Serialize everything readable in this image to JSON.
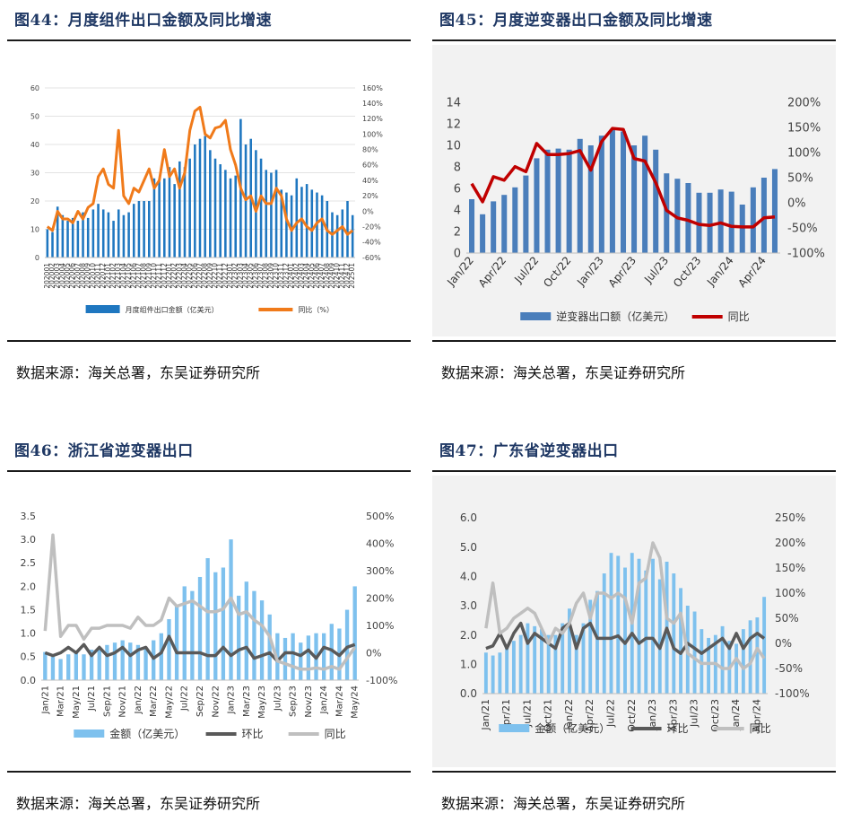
{
  "panels": [
    {
      "title": "图44：月度组件出口金额及同比增速",
      "source": "数据来源：海关总署，东吴证券研究所",
      "chart_data": {
        "type": "bar",
        "categories": [
          "202001",
          "202002",
          "202003",
          "202004",
          "202005",
          "202006",
          "202007",
          "202008",
          "202009",
          "202010",
          "202011",
          "202012",
          "202101",
          "202102",
          "202103",
          "202104",
          "202105",
          "202106",
          "202107",
          "202108",
          "202109",
          "202110",
          "202111",
          "202112",
          "202201",
          "202202",
          "202203",
          "202204",
          "202205",
          "202206",
          "202207",
          "202208",
          "202209",
          "202210",
          "202211",
          "202212",
          "202301",
          "202302",
          "202303",
          "202304",
          "202305",
          "202306",
          "202307",
          "202308",
          "202309",
          "202310",
          "202311",
          "202312",
          "202401",
          "202402",
          "202403",
          "202404",
          "202405",
          "202406",
          "202407",
          "202408",
          "202409",
          "202410",
          "202411",
          "202412",
          "202501"
        ],
        "series": [
          {
            "name": "月度组件出口金额（亿美元）",
            "axis": "left",
            "kind": "bar",
            "values": [
              10,
              9,
              18,
              15,
              13,
              14,
              13,
              16,
              14,
              17,
              19,
              17,
              16,
              13,
              17,
              15,
              16,
              19,
              20,
              20,
              20,
              28,
              27,
              28,
              32,
              26,
              34,
              32,
              35,
              40,
              42,
              43,
              38,
              35,
              33,
              31,
              28,
              29,
              49,
              40,
              42,
              38,
              35,
              31,
              30,
              31,
              24,
              23,
              22,
              28,
              25,
              26,
              24,
              23,
              22,
              20,
              16,
              15,
              17,
              20,
              15
            ]
          },
          {
            "name": "同比（%）",
            "axis": "right",
            "kind": "line",
            "values": [
              -20,
              -25,
              0,
              -10,
              -10,
              -15,
              0,
              -10,
              5,
              10,
              45,
              55,
              35,
              30,
              105,
              20,
              10,
              30,
              25,
              40,
              55,
              30,
              40,
              80,
              45,
              55,
              30,
              50,
              105,
              130,
              135,
              100,
              95,
              108,
              110,
              118,
              80,
              60,
              30,
              15,
              20,
              0,
              20,
              10,
              10,
              30,
              20,
              -10,
              -25,
              -15,
              -10,
              -20,
              -25,
              -15,
              -10,
              -25,
              -30,
              -25,
              -20,
              -30,
              -25
            ]
          }
        ],
        "ylim_left": [
          0,
          60
        ],
        "ylim_right": [
          -60,
          160
        ],
        "yticks_left": [
          0,
          10,
          20,
          30,
          40,
          50,
          60
        ],
        "yticks_right": [
          "-60%",
          "-40%",
          "-20%",
          "0%",
          "20%",
          "40%",
          "60%",
          "80%",
          "100%",
          "120%",
          "140%",
          "160%"
        ],
        "legend": [
          {
            "label": "月度组件出口金额（亿美元）",
            "color": "#1f77c0",
            "kind": "bar"
          },
          {
            "label": "同比（%）",
            "color": "#f07a1a",
            "kind": "line"
          }
        ],
        "legend_position": "bottom",
        "grid": true
      }
    },
    {
      "title": "图45：月度逆变器出口金额及同比增速",
      "source": "数据来源：海关总署，东吴证券研究所",
      "chart_data": {
        "type": "bar",
        "categories": [
          "Jan/22",
          "Feb/22",
          "Mar/22",
          "Apr/22",
          "May/22",
          "Jun/22",
          "Jul/22",
          "Aug/22",
          "Sep/22",
          "Oct/22",
          "Nov/22",
          "Dec/22",
          "Jan/23",
          "Feb/23",
          "Mar/23",
          "Apr/23",
          "May/23",
          "Jun/23",
          "Jul/23",
          "Aug/23",
          "Sep/23",
          "Oct/23",
          "Nov/23",
          "Dec/23",
          "Jan/24",
          "Feb/24",
          "Mar/24",
          "Apr/24",
          "May/24"
        ],
        "xtick_labels": [
          "Jan/22",
          "Apr/22",
          "Jul/22",
          "Oct/22",
          "Jan/23",
          "Apr/23",
          "Jul/23",
          "Oct/23",
          "Jan/24",
          "Apr/24"
        ],
        "series": [
          {
            "name": "逆变器出口额（亿美元）",
            "axis": "left",
            "kind": "bar",
            "values": [
              5.0,
              3.6,
              4.8,
              5.4,
              6.1,
              7.2,
              8.8,
              9.6,
              9.7,
              9.6,
              10.6,
              10.0,
              10.9,
              11.5,
              11.3,
              10.0,
              10.9,
              9.6,
              7.4,
              6.9,
              6.5,
              5.6,
              5.6,
              5.9,
              5.7,
              4.5,
              6.1,
              7.0,
              7.8
            ]
          },
          {
            "name": "同比",
            "axis": "right",
            "kind": "line",
            "values": [
              38,
              2,
              52,
              45,
              72,
              62,
              118,
              96,
              96,
              98,
              104,
              65,
              122,
              148,
              146,
              88,
              83,
              40,
              -15,
              -30,
              -35,
              -43,
              -45,
              -40,
              -47,
              -48,
              -48,
              -30,
              -28
            ]
          }
        ],
        "ylim_left": [
          0,
          14
        ],
        "ylim_right": [
          -100,
          200
        ],
        "yticks_left": [
          0,
          2,
          4,
          6,
          8,
          10,
          12,
          14
        ],
        "yticks_right": [
          "-100%",
          "-50%",
          "0%",
          "50%",
          "100%",
          "150%",
          "200%"
        ],
        "legend": [
          {
            "label": "逆变器出口额（亿美元）",
            "color": "#4a7ebb",
            "kind": "bar"
          },
          {
            "label": "同比",
            "color": "#c00000",
            "kind": "line"
          }
        ],
        "legend_position": "bottom",
        "grid": false
      }
    },
    {
      "title": "图46：浙江省逆变器出口",
      "source": "数据来源：海关总署，东吴证券研究所",
      "chart_data": {
        "type": "bar",
        "categories": [
          "Jan/21",
          "Feb/21",
          "Mar/21",
          "Apr/21",
          "May/21",
          "Jun/21",
          "Jul/21",
          "Aug/21",
          "Sep/21",
          "Oct/21",
          "Nov/21",
          "Dec/21",
          "Jan/22",
          "Feb/22",
          "Mar/22",
          "Apr/22",
          "May/22",
          "Jun/22",
          "Jul/22",
          "Aug/22",
          "Sep/22",
          "Oct/22",
          "Nov/22",
          "Dec/22",
          "Jan/23",
          "Feb/23",
          "Mar/23",
          "Apr/23",
          "May/23",
          "Jun/23",
          "Jul/23",
          "Aug/23",
          "Sep/23",
          "Oct/23",
          "Nov/23",
          "Dec/23",
          "Jan/24",
          "Feb/24",
          "Mar/24",
          "Apr/24",
          "May/24"
        ],
        "xtick_labels": [
          "Jan/21",
          "Mar/21",
          "May/21",
          "Jul/21",
          "Sep/21",
          "Nov/21",
          "Jan/22",
          "Mar/22",
          "May/22",
          "Jul/22",
          "Sep/22",
          "Nov/22",
          "Jan/23",
          "Mar/23",
          "May/23",
          "Jul/23",
          "Sep/23",
          "Nov/23",
          "Jan/24",
          "Mar/24",
          "May/24"
        ],
        "series": [
          {
            "name": "金额（亿美元）",
            "axis": "left",
            "kind": "bar",
            "values": [
              0.6,
              0.5,
              0.45,
              0.55,
              0.6,
              0.55,
              0.65,
              0.7,
              0.75,
              0.8,
              0.85,
              0.8,
              0.75,
              0.7,
              0.85,
              1.0,
              1.3,
              1.6,
              2.0,
              1.9,
              2.2,
              2.6,
              2.3,
              2.4,
              3.0,
              1.8,
              2.1,
              1.9,
              1.7,
              1.4,
              1.0,
              0.9,
              1.0,
              0.8,
              0.95,
              1.0,
              1.0,
              1.2,
              1.1,
              1.5,
              2.0
            ]
          },
          {
            "name": "环比",
            "axis": "right",
            "kind": "line",
            "values": [
              0,
              -10,
              0,
              20,
              0,
              30,
              -10,
              20,
              -10,
              0,
              20,
              -10,
              10,
              20,
              -20,
              0,
              60,
              0,
              0,
              0,
              0,
              -10,
              -10,
              20,
              -10,
              10,
              20,
              -20,
              -10,
              0,
              -30,
              0,
              0,
              -10,
              10,
              -20,
              20,
              10,
              -10,
              20,
              30
            ]
          },
          {
            "name": "同比",
            "axis": "right",
            "kind": "line",
            "values": [
              80,
              430,
              60,
              100,
              100,
              50,
              90,
              90,
              100,
              100,
              100,
              90,
              130,
              100,
              100,
              120,
              200,
              170,
              180,
              190,
              170,
              150,
              150,
              160,
              200,
              140,
              150,
              120,
              100,
              60,
              -30,
              -40,
              -50,
              -60,
              -60,
              -55,
              -60,
              -50,
              -60,
              -20,
              20
            ]
          }
        ],
        "ylim_left": [
          0,
          3.5
        ],
        "ylim_right": [
          -100,
          500
        ],
        "yticks_left": [
          "0.0",
          "0.5",
          "1.0",
          "1.5",
          "2.0",
          "2.5",
          "3.0",
          "3.5"
        ],
        "yticks_right": [
          "-100%",
          "0%",
          "100%",
          "200%",
          "300%",
          "400%",
          "500%"
        ],
        "legend": [
          {
            "label": "金额（亿美元）",
            "color": "#7ec1ee",
            "kind": "bar"
          },
          {
            "label": "环比",
            "color": "#595959",
            "kind": "line"
          },
          {
            "label": "同比",
            "color": "#bfbfbf",
            "kind": "line"
          }
        ],
        "legend_position": "bottom",
        "grid": false
      }
    },
    {
      "title": "图47：广东省逆变器出口",
      "source": "数据来源：海关总署，东吴证券研究所",
      "chart_data": {
        "type": "bar",
        "categories": [
          "Jan/21",
          "Feb/21",
          "Mar/21",
          "Apr/21",
          "May/21",
          "Jun/21",
          "Jul/21",
          "Aug/21",
          "Sep/21",
          "Oct/21",
          "Nov/21",
          "Dec/21",
          "Jan/22",
          "Feb/22",
          "Mar/22",
          "Apr/22",
          "May/22",
          "Jun/22",
          "Jul/22",
          "Aug/22",
          "Sep/22",
          "Oct/22",
          "Nov/22",
          "Dec/22",
          "Jan/23",
          "Feb/23",
          "Mar/23",
          "Apr/23",
          "May/23",
          "Jun/23",
          "Jul/23",
          "Aug/23",
          "Sep/23",
          "Oct/23",
          "Nov/23",
          "Dec/23",
          "Jan/24",
          "Feb/24",
          "Mar/24",
          "Apr/24",
          "May/24"
        ],
        "xtick_labels": [
          "Jan/21",
          "Apr/21",
          "Jul/21",
          "Oct/21",
          "Jan/22",
          "Apr/22",
          "Jul/22",
          "Oct/22",
          "Jan/23",
          "Apr/23",
          "Jul/23",
          "Oct/23",
          "Jan/24",
          "Apr/24"
        ],
        "series": [
          {
            "name": "金额（亿美元）",
            "axis": "left",
            "kind": "bar",
            "values": [
              1.4,
              1.3,
              1.4,
              1.6,
              1.8,
              2.0,
              2.4,
              2.3,
              2.2,
              2.0,
              2.0,
              2.4,
              2.9,
              2.0,
              2.4,
              3.2,
              3.5,
              4.1,
              4.8,
              4.7,
              4.3,
              4.8,
              4.6,
              4.2,
              4.6,
              3.9,
              4.5,
              4.1,
              3.6,
              3.0,
              2.8,
              2.2,
              1.9,
              2.0,
              2.3,
              1.8,
              1.7,
              2.2,
              2.5,
              2.6,
              3.3
            ]
          },
          {
            "name": "环比",
            "axis": "right",
            "kind": "line",
            "values": [
              -10,
              -5,
              20,
              -10,
              20,
              40,
              0,
              20,
              10,
              0,
              -10,
              30,
              40,
              -10,
              30,
              40,
              10,
              10,
              10,
              15,
              0,
              20,
              0,
              10,
              10,
              -10,
              30,
              -10,
              -20,
              0,
              -10,
              -20,
              -10,
              0,
              10,
              -10,
              20,
              -10,
              10,
              20,
              10
            ]
          },
          {
            "name": "同比",
            "axis": "right",
            "kind": "line",
            "values": [
              30,
              120,
              20,
              30,
              50,
              60,
              70,
              60,
              30,
              0,
              30,
              20,
              40,
              80,
              100,
              50,
              100,
              100,
              90,
              100,
              90,
              40,
              120,
              130,
              200,
              170,
              50,
              40,
              60,
              -20,
              -30,
              -40,
              -40,
              -40,
              -50,
              -50,
              -30,
              -50,
              -40,
              -10,
              -30
            ]
          }
        ],
        "ylim_left": [
          0,
          6
        ],
        "ylim_right": [
          -100,
          250
        ],
        "yticks_left": [
          "0.0",
          "1.0",
          "2.0",
          "3.0",
          "4.0",
          "5.0",
          "6.0"
        ],
        "yticks_right": [
          "-100%",
          "-50%",
          "0%",
          "50%",
          "100%",
          "150%",
          "200%",
          "250%"
        ],
        "legend": [
          {
            "label": "金额（亿美元）",
            "color": "#7ec1ee",
            "kind": "bar"
          },
          {
            "label": "环比",
            "color": "#595959",
            "kind": "line"
          },
          {
            "label": "同比",
            "color": "#bfbfbf",
            "kind": "line"
          }
        ],
        "legend_position": "bottom",
        "grid": false
      }
    }
  ]
}
